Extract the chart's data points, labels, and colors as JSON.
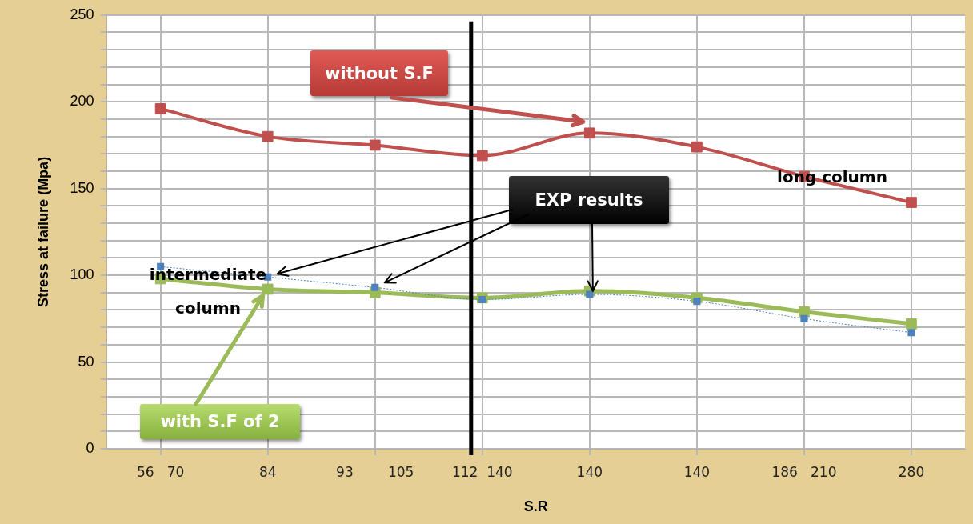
{
  "chart_data": {
    "type": "line",
    "xlabel": "S.R",
    "ylabel": "Stress at failure (Mpa)",
    "categories": [
      "56   70",
      "84",
      "93        105",
      "112  140",
      "140",
      "140",
      "186   210",
      "280"
    ],
    "series": [
      {
        "name": "without S.F",
        "color": "#c0504d",
        "values": [
          196,
          180,
          175,
          169,
          182,
          174,
          157,
          142
        ],
        "marker": "square",
        "line_style": "solid"
      },
      {
        "name": "with S.F of 2",
        "color": "#9bbb59",
        "values": [
          98,
          92,
          90,
          87,
          91,
          87,
          79,
          72
        ],
        "marker": "square",
        "line_style": "solid"
      },
      {
        "name": "EXP results",
        "color": "#4f81bd",
        "values": [
          105,
          99,
          93,
          86,
          89,
          85,
          75,
          67
        ],
        "marker": "square",
        "line_style": "dotted"
      }
    ],
    "ylim": [
      0,
      250
    ],
    "yticks": [
      0,
      {
        "value": 10,
        "label": null
      },
      {
        "value": 20,
        "label": null
      },
      {
        "value": 30,
        "label": null
      },
      {
        "value": 40,
        "label": null
      },
      50,
      {
        "value": 60,
        "label": null
      },
      {
        "value": 70,
        "label": null
      },
      {
        "value": 80,
        "label": null
      },
      {
        "value": 90,
        "label": null
      },
      100,
      {
        "value": 110,
        "label": null
      },
      {
        "value": 120,
        "label": null
      },
      {
        "value": 130,
        "label": null
      },
      {
        "value": 140,
        "label": null
      },
      150,
      {
        "value": 160,
        "label": null
      },
      {
        "value": 170,
        "label": null
      },
      {
        "value": 180,
        "label": null
      },
      {
        "value": 190,
        "label": null
      },
      200,
      {
        "value": 210,
        "label": null
      },
      {
        "value": 220,
        "label": null
      },
      {
        "value": 230,
        "label": null
      },
      {
        "value": 240,
        "label": null
      },
      250
    ],
    "ref_lines": [
      {
        "axis": "x",
        "value": "112  140",
        "color": "#000000"
      }
    ],
    "annotations": [
      "long column",
      "intermediate column"
    ],
    "grid": true,
    "legend": false
  }
}
